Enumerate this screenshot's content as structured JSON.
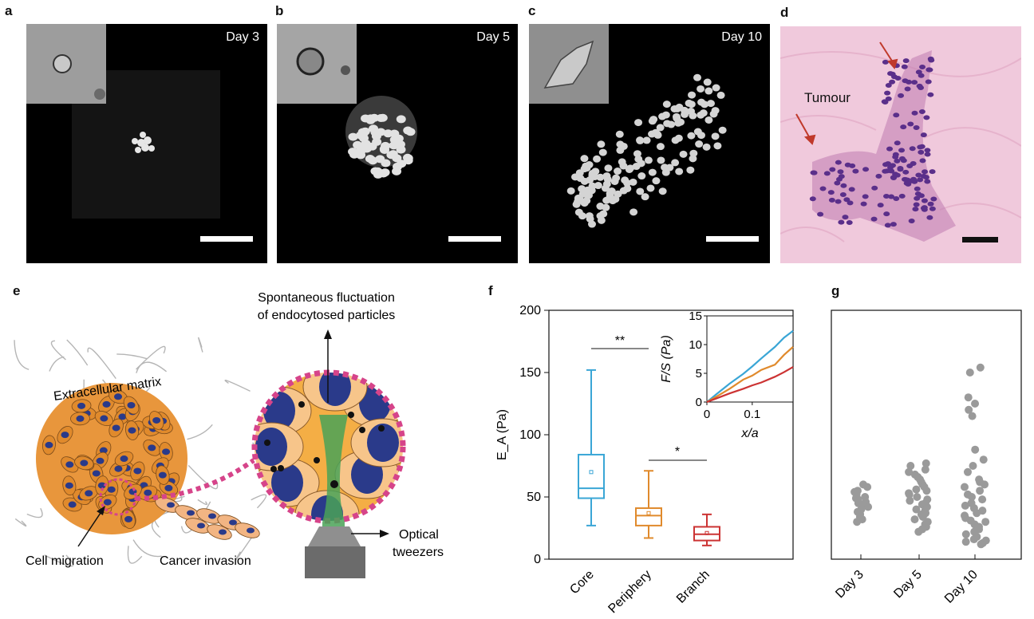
{
  "panels": {
    "a": {
      "label": "a",
      "day": "Day 3"
    },
    "b": {
      "label": "b",
      "day": "Day 5"
    },
    "c": {
      "label": "c",
      "day": "Day 10"
    },
    "d": {
      "label": "d",
      "annotation": "Tumour"
    },
    "e": {
      "label": "e",
      "top_text_1": "Spontaneous fluctuation",
      "top_text_2": "of endocytosed particles",
      "ecm": "Extracellular matrix",
      "migration": "Cell migration",
      "invasion": "Cancer invasion",
      "tweezers_1": "Optical",
      "tweezers_2": "tweezers"
    },
    "f": {
      "label": "f"
    },
    "g": {
      "label": "g"
    }
  },
  "colors": {
    "core": "#3aa6d6",
    "periphery": "#e08a2c",
    "branch": "#cc3333",
    "dots": "#9a9a9a",
    "ring": "#d6448a",
    "cell_orange": "#e8963c",
    "nucleus": "#2a3a8a"
  },
  "chart_data": [
    {
      "type": "box",
      "panel": "f",
      "categories": [
        "Core",
        "Periphery",
        "Branch"
      ],
      "ylabel": "E_A (Pa)",
      "ylim": [
        0,
        200
      ],
      "yticks": [
        0,
        50,
        100,
        150,
        200
      ],
      "boxes": [
        {
          "category": "Core",
          "min": 27,
          "q1": 49,
          "median": 57,
          "mean": 70,
          "q3": 84,
          "max": 152
        },
        {
          "category": "Periphery",
          "min": 17,
          "q1": 27,
          "median": 35,
          "mean": 37,
          "q3": 41,
          "max": 71
        },
        {
          "category": "Branch",
          "min": 11,
          "q1": 15,
          "median": 20,
          "mean": 21,
          "q3": 26,
          "max": 36
        }
      ],
      "significance": [
        {
          "pair": [
            "Core",
            "Periphery"
          ],
          "label": "**"
        },
        {
          "pair": [
            "Periphery",
            "Branch"
          ],
          "label": "*"
        }
      ],
      "inset": {
        "type": "line",
        "xlabel": "x/a",
        "ylabel": "F/S (Pa)",
        "xlim": [
          0,
          0.19
        ],
        "ylim": [
          0,
          15
        ],
        "xticks": [
          0,
          0.1
        ],
        "yticks": [
          0,
          5,
          10,
          15
        ],
        "series": [
          {
            "x": [
              0,
              0.02,
              0.05,
              0.08,
              0.1,
              0.12,
              0.15,
              0.17,
              0.19
            ],
            "y": [
              0,
              1.3,
              3.2,
              4.9,
              6.2,
              7.6,
              9.6,
              11.2,
              12.4
            ]
          },
          {
            "x": [
              0,
              0.02,
              0.05,
              0.08,
              0.1,
              0.12,
              0.15,
              0.17,
              0.19
            ],
            "y": [
              0,
              0.9,
              2.3,
              3.9,
              4.6,
              5.6,
              6.5,
              8.2,
              9.6
            ]
          },
          {
            "x": [
              0,
              0.02,
              0.05,
              0.08,
              0.1,
              0.12,
              0.15,
              0.17,
              0.19
            ],
            "y": [
              0,
              0.6,
              1.5,
              2.3,
              2.9,
              3.4,
              4.4,
              5.2,
              6.1
            ]
          }
        ]
      }
    },
    {
      "type": "scatter",
      "panel": "g",
      "categories": [
        "Day 3",
        "Day 5",
        "Day 10"
      ],
      "ylim": [
        0,
        200
      ],
      "series": [
        {
          "category": "Day 3",
          "values": [
            60,
            58,
            55,
            54,
            52,
            50,
            49,
            48,
            46,
            45,
            44,
            43,
            42,
            40,
            38,
            36,
            34,
            32,
            30
          ]
        },
        {
          "category": "Day 5",
          "values": [
            77,
            75,
            72,
            70,
            68,
            66,
            64,
            62,
            60,
            58,
            56,
            55,
            53,
            52,
            50,
            48,
            47,
            45,
            44,
            42,
            40,
            39,
            37,
            36,
            34,
            32,
            30,
            28,
            26,
            24,
            22
          ]
        },
        {
          "category": "Day 10",
          "values": [
            154,
            150,
            130,
            125,
            120,
            115,
            88,
            80,
            75,
            70,
            64,
            62,
            60,
            58,
            55,
            52,
            50,
            48,
            45,
            43,
            41,
            39,
            37,
            35,
            33,
            31,
            30,
            28,
            26,
            24,
            22,
            20,
            18,
            16,
            15,
            14,
            13,
            12
          ]
        }
      ]
    }
  ]
}
